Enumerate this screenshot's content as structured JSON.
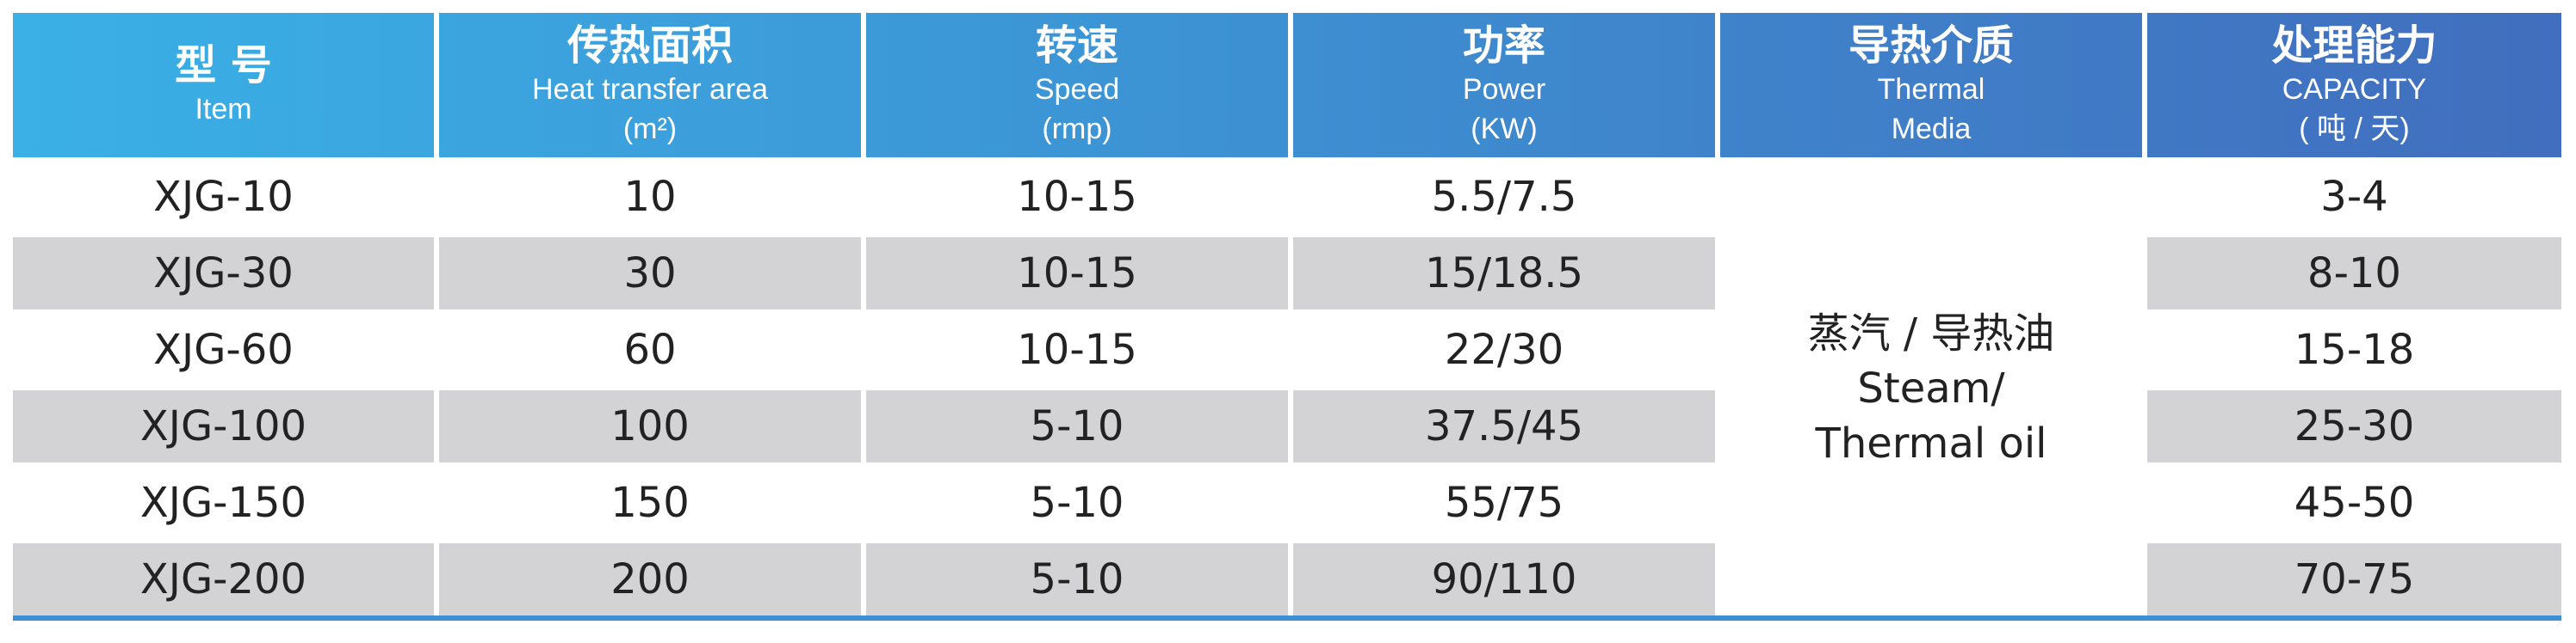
{
  "header": [
    {
      "zh": "型 号",
      "en": [
        "Item"
      ]
    },
    {
      "zh": "传热面积",
      "en": [
        "Heat transfer area",
        "(m²)"
      ]
    },
    {
      "zh": "转速",
      "en": [
        "Speed",
        "(rmp)"
      ]
    },
    {
      "zh": "功率",
      "en": [
        "Power",
        "(KW)"
      ]
    },
    {
      "zh": "导热介质",
      "en": [
        "Thermal",
        "Media"
      ]
    },
    {
      "zh": "处理能力",
      "en": [
        "CAPACITY",
        "( 吨 / 天)"
      ]
    }
  ],
  "rows": [
    [
      "XJG-10",
      "10",
      "10-15",
      "5.5/7.5",
      "3-4"
    ],
    [
      "XJG-30",
      "30",
      "10-15",
      "15/18.5",
      "8-10"
    ],
    [
      "XJG-60",
      "60",
      "10-15",
      "22/30",
      "15-18"
    ],
    [
      "XJG-100",
      "100",
      "5-10",
      "37.5/45",
      "25-30"
    ],
    [
      "XJG-150",
      "150",
      "5-10",
      "55/75",
      "45-50"
    ],
    [
      "XJG-200",
      "200",
      "5-10",
      "90/110",
      "70-75"
    ]
  ],
  "media": [
    "蒸汽 / 导热油",
    "Steam/",
    "Thermal oil"
  ]
}
